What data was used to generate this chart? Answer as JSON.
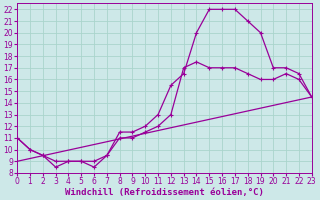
{
  "xlabel": "Windchill (Refroidissement éolien,°C)",
  "bg_color": "#cde8e8",
  "grid_color": "#aad4cc",
  "line_color": "#990099",
  "xlim": [
    0,
    23
  ],
  "ylim": [
    8,
    22.5
  ],
  "xticks": [
    0,
    1,
    2,
    3,
    4,
    5,
    6,
    7,
    8,
    9,
    10,
    11,
    12,
    13,
    14,
    15,
    16,
    17,
    18,
    19,
    20,
    21,
    22,
    23
  ],
  "yticks": [
    8,
    9,
    10,
    11,
    12,
    13,
    14,
    15,
    16,
    17,
    18,
    19,
    20,
    21,
    22
  ],
  "curve1_x": [
    0,
    1,
    2,
    3,
    4,
    5,
    6,
    7,
    8,
    9,
    10,
    11,
    12,
    13,
    14,
    15,
    16,
    17,
    18,
    19,
    20,
    21,
    22,
    23
  ],
  "curve1_y": [
    11,
    10,
    9.5,
    8.5,
    9,
    9,
    8.5,
    9.5,
    11.5,
    11.5,
    12,
    13,
    15.5,
    16.5,
    20,
    22,
    22,
    22,
    21,
    20,
    17,
    17,
    16.5,
    14.5
  ],
  "curve2_x": [
    0,
    1,
    2,
    3,
    4,
    5,
    6,
    7,
    8,
    9,
    10,
    11,
    12,
    13,
    14,
    15,
    16,
    17,
    18,
    19,
    20,
    21,
    22,
    23
  ],
  "curve2_y": [
    11,
    10,
    9.5,
    9,
    9,
    9,
    9,
    9.5,
    11,
    11,
    11.5,
    12,
    13,
    17,
    17.5,
    17,
    17,
    17,
    16.5,
    16,
    16,
    16.5,
    16,
    14.5
  ],
  "curve3_x": [
    0,
    23
  ],
  "curve3_y": [
    9,
    14.5
  ],
  "tick_fontsize": 5.5,
  "label_fontsize": 6.5
}
